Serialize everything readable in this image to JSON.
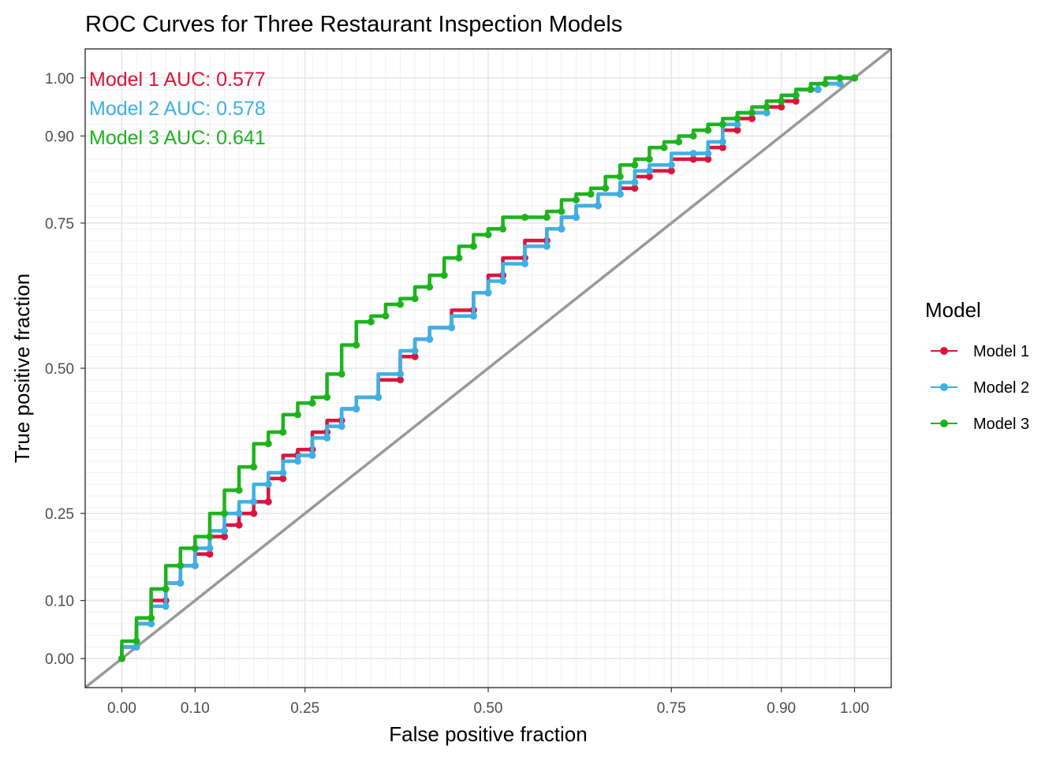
{
  "chart_data": {
    "type": "line",
    "title": "ROC Curves for Three Restaurant Inspection Models",
    "xlabel": "False positive fraction",
    "ylabel": "True positive fraction",
    "xlim": [
      -0.05,
      1.05
    ],
    "ylim": [
      -0.05,
      1.05
    ],
    "x_ticks": [
      0.0,
      0.1,
      0.25,
      0.5,
      0.75,
      0.9,
      1.0
    ],
    "x_tick_labels": [
      "0.00",
      "0.10",
      "0.25",
      "0.50",
      "0.75",
      "0.90",
      "1.00"
    ],
    "y_ticks": [
      0.0,
      0.1,
      0.25,
      0.5,
      0.75,
      0.9,
      1.0
    ],
    "y_tick_labels": [
      "0.00",
      "0.10",
      "0.25",
      "0.50",
      "0.75",
      "0.90",
      "1.00"
    ],
    "grid": true,
    "reference_line": {
      "x": [
        -0.05,
        1.05
      ],
      "y": [
        -0.05,
        1.05
      ],
      "color": "#999999"
    },
    "legend": {
      "title": "Model",
      "position": "right"
    },
    "series": [
      {
        "name": "Model 1",
        "color": "#DC143C",
        "auc_label": "Model 1 AUC:  0.577",
        "x": [
          0.0,
          0.02,
          0.04,
          0.06,
          0.08,
          0.1,
          0.12,
          0.14,
          0.16,
          0.18,
          0.2,
          0.22,
          0.24,
          0.26,
          0.28,
          0.3,
          0.32,
          0.35,
          0.38,
          0.4,
          0.42,
          0.45,
          0.48,
          0.5,
          0.52,
          0.55,
          0.58,
          0.6,
          0.62,
          0.65,
          0.68,
          0.7,
          0.72,
          0.75,
          0.78,
          0.8,
          0.82,
          0.84,
          0.86,
          0.88,
          0.9,
          0.92,
          0.95,
          0.98,
          1.0
        ],
        "y": [
          0.0,
          0.02,
          0.06,
          0.1,
          0.13,
          0.16,
          0.18,
          0.21,
          0.23,
          0.25,
          0.27,
          0.31,
          0.35,
          0.36,
          0.39,
          0.41,
          0.43,
          0.45,
          0.48,
          0.52,
          0.55,
          0.57,
          0.6,
          0.63,
          0.66,
          0.69,
          0.72,
          0.74,
          0.76,
          0.78,
          0.8,
          0.81,
          0.83,
          0.84,
          0.86,
          0.86,
          0.88,
          0.91,
          0.93,
          0.94,
          0.95,
          0.96,
          0.98,
          0.99,
          1.0
        ]
      },
      {
        "name": "Model 2",
        "color": "#3DB0E6",
        "auc_label": "Model 2 AUC:  0.578",
        "x": [
          0.0,
          0.02,
          0.04,
          0.06,
          0.08,
          0.1,
          0.12,
          0.14,
          0.16,
          0.18,
          0.2,
          0.22,
          0.24,
          0.26,
          0.28,
          0.3,
          0.32,
          0.35,
          0.38,
          0.4,
          0.42,
          0.45,
          0.48,
          0.5,
          0.52,
          0.55,
          0.58,
          0.6,
          0.62,
          0.65,
          0.68,
          0.7,
          0.72,
          0.75,
          0.78,
          0.8,
          0.82,
          0.84,
          0.86,
          0.88,
          0.9,
          0.92,
          0.95,
          0.98,
          1.0
        ],
        "y": [
          0.0,
          0.02,
          0.06,
          0.09,
          0.13,
          0.16,
          0.19,
          0.22,
          0.25,
          0.27,
          0.3,
          0.32,
          0.34,
          0.35,
          0.38,
          0.4,
          0.43,
          0.45,
          0.49,
          0.53,
          0.55,
          0.57,
          0.59,
          0.63,
          0.65,
          0.68,
          0.71,
          0.74,
          0.76,
          0.78,
          0.8,
          0.82,
          0.84,
          0.85,
          0.87,
          0.87,
          0.89,
          0.92,
          0.94,
          0.94,
          0.96,
          0.97,
          0.98,
          0.99,
          1.0
        ]
      },
      {
        "name": "Model 3",
        "color": "#1DB31D",
        "auc_label": "Model 3 AUC:  0.641",
        "x": [
          0.0,
          0.02,
          0.04,
          0.06,
          0.08,
          0.1,
          0.12,
          0.14,
          0.16,
          0.18,
          0.2,
          0.22,
          0.24,
          0.26,
          0.28,
          0.3,
          0.32,
          0.34,
          0.36,
          0.38,
          0.4,
          0.42,
          0.44,
          0.46,
          0.48,
          0.5,
          0.52,
          0.55,
          0.58,
          0.6,
          0.62,
          0.64,
          0.66,
          0.68,
          0.7,
          0.72,
          0.74,
          0.76,
          0.78,
          0.8,
          0.82,
          0.84,
          0.86,
          0.88,
          0.9,
          0.92,
          0.94,
          0.96,
          0.98,
          1.0
        ],
        "y": [
          0.0,
          0.03,
          0.07,
          0.12,
          0.16,
          0.19,
          0.21,
          0.25,
          0.29,
          0.33,
          0.37,
          0.39,
          0.42,
          0.44,
          0.45,
          0.49,
          0.54,
          0.58,
          0.59,
          0.61,
          0.62,
          0.64,
          0.66,
          0.69,
          0.71,
          0.73,
          0.74,
          0.76,
          0.76,
          0.77,
          0.79,
          0.8,
          0.81,
          0.83,
          0.85,
          0.86,
          0.88,
          0.89,
          0.9,
          0.91,
          0.92,
          0.93,
          0.94,
          0.95,
          0.96,
          0.97,
          0.98,
          0.99,
          1.0,
          1.0
        ]
      }
    ]
  }
}
